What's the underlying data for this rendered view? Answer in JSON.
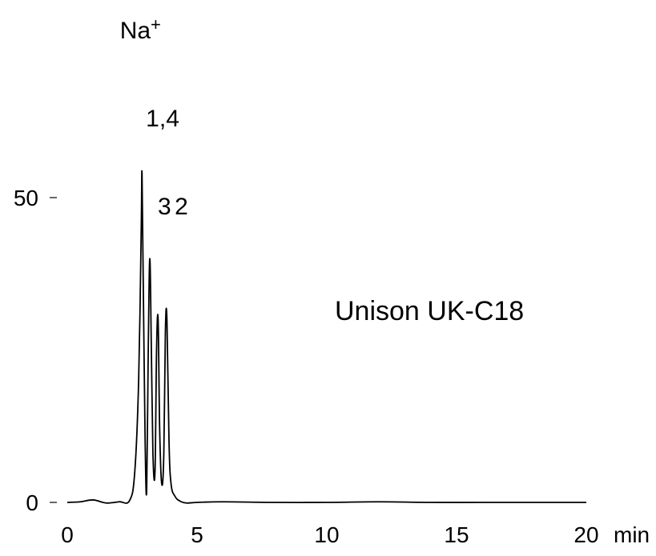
{
  "chart_data": {
    "type": "line",
    "title": "",
    "xlabel": "",
    "ylabel": "",
    "x_unit": "min",
    "xlim": [
      0,
      20
    ],
    "ylim": [
      0,
      50
    ],
    "x_ticks": [
      "0",
      "5",
      "10",
      "15",
      "20"
    ],
    "y_ticks": [
      "0",
      "50"
    ],
    "grid": false,
    "series": [
      {
        "color": "#000000",
        "x": [
          0,
          0.5,
          1,
          1.5,
          2,
          2.4,
          2.6,
          2.75,
          2.85,
          2.88,
          2.93,
          3.0,
          3.06,
          3.12,
          3.18,
          3.24,
          3.3,
          3.38,
          3.44,
          3.5,
          3.56,
          3.64,
          3.72,
          3.78,
          3.84,
          3.92,
          4.0,
          4.15,
          4.35,
          4.6,
          5,
          6,
          8,
          10,
          12,
          14,
          16,
          18,
          20
        ],
        "y": [
          0.0,
          0.1,
          0.4,
          -0.1,
          0.1,
          0.3,
          5,
          20,
          45,
          54,
          35,
          10,
          2,
          25,
          40,
          25,
          8,
          5,
          25,
          30,
          12,
          3,
          8,
          28,
          30,
          10,
          3,
          1.0,
          0.2,
          -0.1,
          0.0,
          0.1,
          0.0,
          0.0,
          0.1,
          0.0,
          0.0,
          0.0,
          0.0
        ]
      }
    ],
    "peak_labels": [
      {
        "text": "Na",
        "sup": "+",
        "x": 2.88
      },
      {
        "text": "1,4",
        "x": 3.18
      },
      {
        "text": "3",
        "x": 3.5
      },
      {
        "text": "2",
        "x": 3.84
      }
    ],
    "annotation": "Unison UK-C18"
  }
}
